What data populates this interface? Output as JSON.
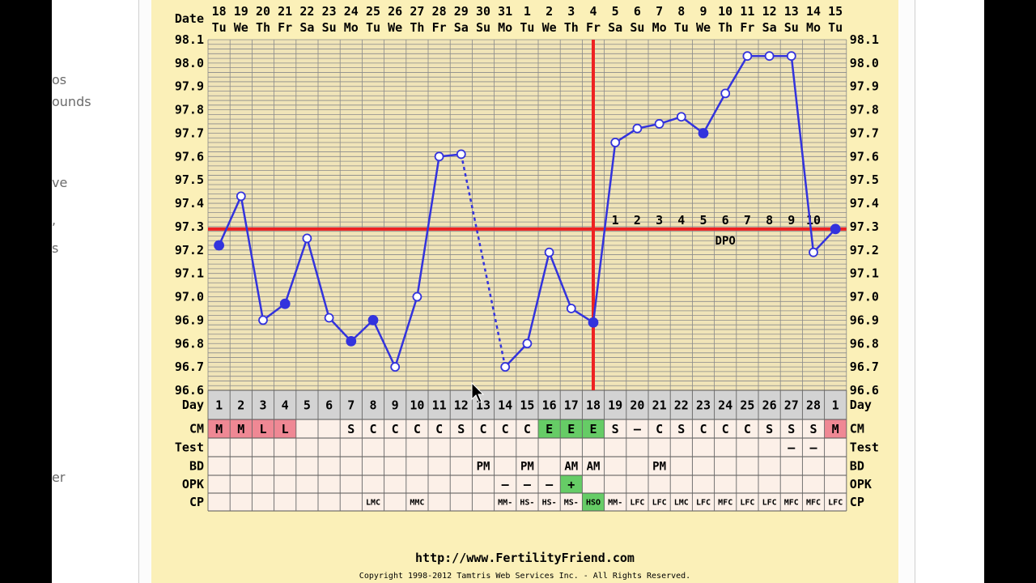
{
  "page": {
    "side_fragments": [
      "os",
      "ounds",
      "ve",
      ",",
      "s",
      "er"
    ],
    "footer_url": "http://www.FertilityFriend.com",
    "footer_copyright": "Copyright 1998-2012 Tamtris Web Services Inc. - All Rights Reserved."
  },
  "chart_data": {
    "type": "line",
    "title": "",
    "xlabel": "Date",
    "ylabel": "",
    "ylim": [
      96.6,
      98.1
    ],
    "yticks": [
      "98.1",
      "98.0",
      "97.9",
      "97.8",
      "97.7",
      "97.6",
      "97.5",
      "97.4",
      "97.3",
      "97.2",
      "97.1",
      "97.0",
      "96.9",
      "96.8",
      "96.7",
      "96.6"
    ],
    "dates": [
      "18",
      "19",
      "20",
      "21",
      "22",
      "23",
      "24",
      "25",
      "26",
      "27",
      "28",
      "29",
      "30",
      "31",
      "1",
      "2",
      "3",
      "4",
      "5",
      "6",
      "7",
      "8",
      "9",
      "10",
      "11",
      "12",
      "13",
      "14",
      "15"
    ],
    "weekdays": [
      "Tu",
      "We",
      "Th",
      "Fr",
      "Sa",
      "Su",
      "Mo",
      "Tu",
      "We",
      "Th",
      "Fr",
      "Sa",
      "Su",
      "Mo",
      "Tu",
      "We",
      "Th",
      "Fr",
      "Sa",
      "Su",
      "Mo",
      "Tu",
      "We",
      "Th",
      "Fr",
      "Sa",
      "Su",
      "Mo",
      "Tu"
    ],
    "days": [
      "1",
      "2",
      "3",
      "4",
      "5",
      "6",
      "7",
      "8",
      "9",
      "10",
      "11",
      "12",
      "13",
      "14",
      "15",
      "16",
      "17",
      "18",
      "19",
      "20",
      "21",
      "22",
      "23",
      "24",
      "25",
      "26",
      "27",
      "28",
      "1"
    ],
    "temps": [
      97.22,
      97.43,
      96.9,
      96.97,
      97.25,
      96.91,
      96.81,
      96.9,
      96.7,
      97.0,
      97.6,
      97.61,
      null,
      96.7,
      96.8,
      97.19,
      96.95,
      96.89,
      97.66,
      97.72,
      97.74,
      97.77,
      97.7,
      97.87,
      98.03,
      98.03,
      98.03,
      97.19,
      97.29
    ],
    "point_style": [
      "filled",
      "open",
      "open",
      "filled",
      "open",
      "open",
      "filled",
      "filled",
      "open",
      "open",
      "open",
      "open",
      "none",
      "open",
      "open",
      "open",
      "open",
      "filled",
      "open",
      "open",
      "open",
      "open",
      "filled",
      "open",
      "open",
      "open",
      "open",
      "open",
      "filled"
    ],
    "dotted_segments": [
      [
        11,
        13
      ]
    ],
    "coverline": 97.29,
    "ovulation_day_index": 17,
    "dpo_labels": [
      "1",
      "2",
      "3",
      "4",
      "5",
      "6",
      "7",
      "8",
      "9",
      "10"
    ],
    "dpo_start_index": 18,
    "dpo_text": "DPO",
    "row_labels": [
      "Day",
      "CM",
      "Test",
      "BD",
      "OPK",
      "CP"
    ],
    "cm": [
      "M",
      "M",
      "L",
      "L",
      "",
      "",
      "S",
      "C",
      "C",
      "C",
      "C",
      "S",
      "C",
      "C",
      "C",
      "E",
      "E",
      "E",
      "S",
      "–",
      "C",
      "S",
      "C",
      "C",
      "C",
      "S",
      "S",
      "S",
      "M"
    ],
    "cm_colors": [
      "pink",
      "pink",
      "pink",
      "pink",
      "",
      "",
      "",
      "",
      "",
      "",
      "",
      "",
      "",
      "",
      "",
      "green",
      "green",
      "green",
      "",
      "",
      "",
      "",
      "",
      "",
      "",
      "",
      "",
      "",
      "pink"
    ],
    "test": [
      "",
      "",
      "",
      "",
      "",
      "",
      "",
      "",
      "",
      "",
      "",
      "",
      "",
      "",
      "",
      "",
      "",
      "",
      "",
      "",
      "",
      "",
      "",
      "",
      "",
      "",
      "–",
      "–",
      ""
    ],
    "bd": [
      "",
      "",
      "",
      "",
      "",
      "",
      "",
      "",
      "",
      "",
      "",
      "",
      "PM",
      "",
      "PM",
      "",
      "AM",
      "AM",
      "",
      "",
      "PM",
      "",
      "",
      "",
      "",
      "",
      "",
      "",
      ""
    ],
    "opk": [
      "",
      "",
      "",
      "",
      "",
      "",
      "",
      "",
      "",
      "",
      "",
      "",
      "",
      "–",
      "–",
      "–",
      "+",
      "",
      "",
      "",
      "",
      "",
      "",
      "",
      "",
      "",
      "",
      "",
      ""
    ],
    "opk_colors": [
      "",
      "",
      "",
      "",
      "",
      "",
      "",
      "",
      "",
      "",
      "",
      "",
      "",
      "",
      "",
      "",
      "green",
      "",
      "",
      "",
      "",
      "",
      "",
      "",
      "",
      "",
      "",
      "",
      ""
    ],
    "cp": [
      "",
      "",
      "",
      "",
      "",
      "",
      "",
      "LMC",
      "",
      "MMC",
      "",
      "",
      "",
      "MM-",
      "HS-",
      "HS-",
      "MS-",
      "HSO",
      "MM-",
      "LFC",
      "LFC",
      "LMC",
      "LFC",
      "MFC",
      "LFC",
      "LFC",
      "MFC",
      "MFC",
      "LFC"
    ],
    "cp_colors": [
      "",
      "",
      "",
      "",
      "",
      "",
      "",
      "",
      "",
      "",
      "",
      "",
      "",
      "",
      "",
      "",
      "",
      "green",
      "",
      "",
      "",
      "",
      "",
      "",
      "",
      "",
      "",
      "",
      ""
    ],
    "colors": {
      "line": "#3333dd",
      "coverline": "#ee2222",
      "grid": "#8a8a8a",
      "plot_bg": "#f0e4b8",
      "row_bg": "#fcf0e8",
      "pink": "#ef8894",
      "green": "#66cc66",
      "day_row_bg": "#d3d3d3"
    }
  }
}
